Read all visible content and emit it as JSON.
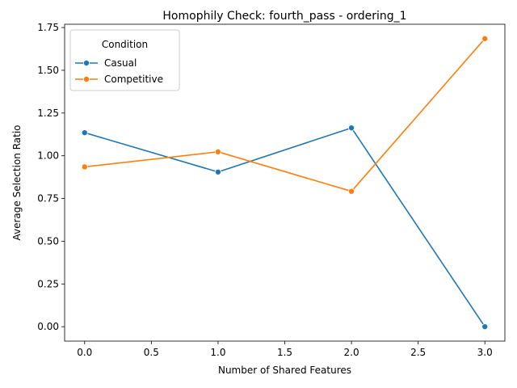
{
  "chart_data": {
    "type": "line",
    "title": "Homophily Check: fourth_pass - ordering_1",
    "xlabel": "Number of Shared Features",
    "ylabel": "Average Selection Ratio",
    "x": [
      0,
      1,
      2,
      3
    ],
    "xlim": [
      -0.15,
      3.15
    ],
    "ylim": [
      -0.0843,
      1.7693
    ],
    "xticks": [
      0.0,
      0.5,
      1.0,
      1.5,
      2.0,
      2.5,
      3.0
    ],
    "xtick_labels": [
      "0.0",
      "0.5",
      "1.0",
      "1.5",
      "2.0",
      "2.5",
      "3.0"
    ],
    "yticks": [
      0.0,
      0.25,
      0.5,
      0.75,
      1.0,
      1.25,
      1.5,
      1.75
    ],
    "ytick_labels": [
      "0.00",
      "0.25",
      "0.50",
      "0.75",
      "1.00",
      "1.25",
      "1.50",
      "1.75"
    ],
    "grid": false,
    "legend_title": "Condition",
    "legend_position": "top-left",
    "series": [
      {
        "name": "Casual",
        "color": "#1f77b4",
        "marker": "circle",
        "values": [
          1.135,
          0.905,
          1.163,
          0.0
        ]
      },
      {
        "name": "Competitive",
        "color": "#ff7f0e",
        "marker": "circle",
        "values": [
          0.935,
          1.023,
          0.792,
          1.685
        ]
      }
    ]
  }
}
